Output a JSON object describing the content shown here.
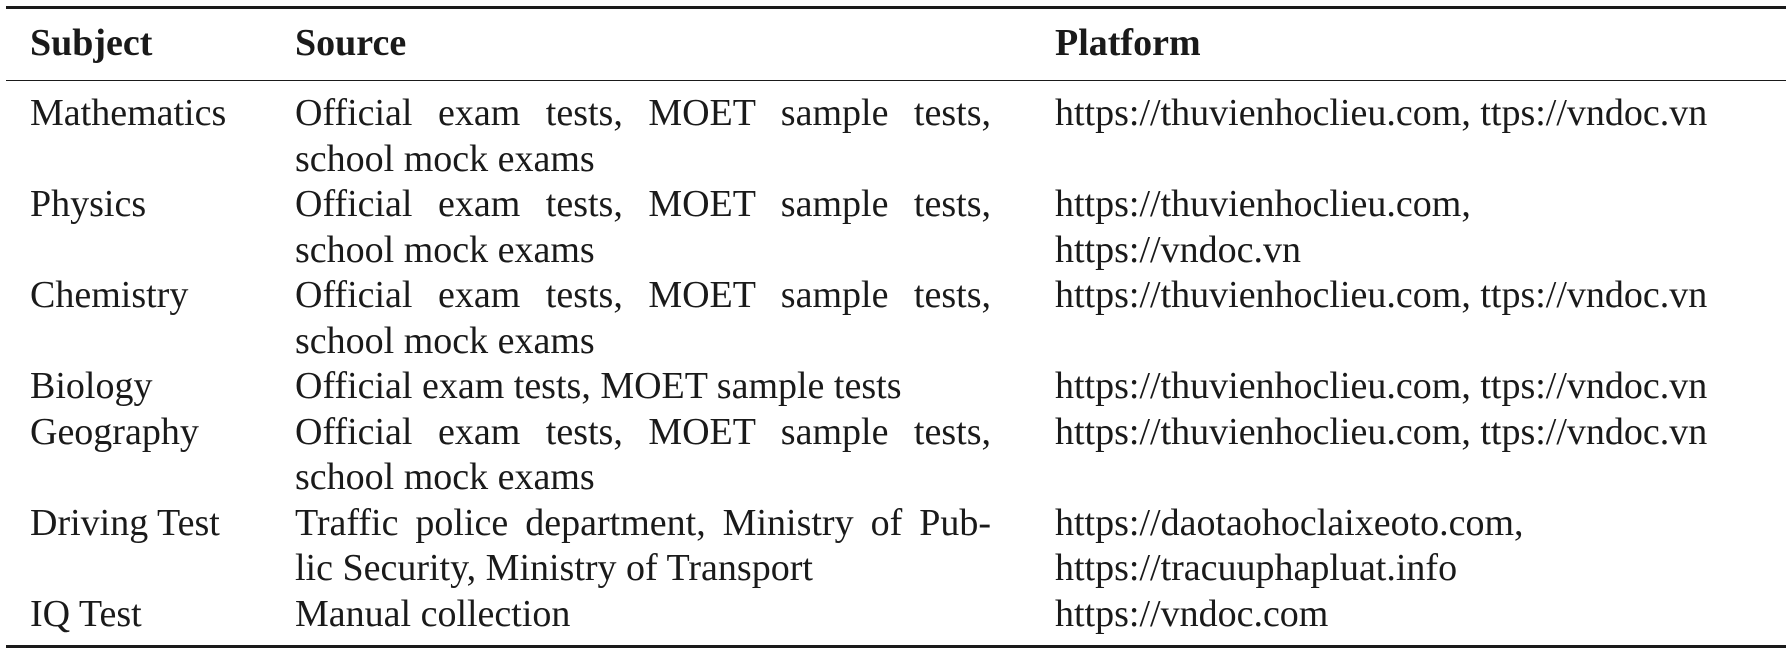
{
  "table": {
    "headers": {
      "subject": "Subject",
      "source": "Source",
      "platform": "Platform"
    },
    "rows": [
      {
        "subject": "Mathematics",
        "source_lines": [
          "Official exam tests, MOET sample tests,",
          "school mock exams"
        ],
        "platform_lines": [
          "https://thuvienhoclieu.com, ttps://vndoc.vn"
        ]
      },
      {
        "subject": "Physics",
        "source_lines": [
          "Official exam tests, MOET sample tests,",
          "school mock exams"
        ],
        "platform_lines": [
          "https://thuvienhoclieu.com,",
          "https://vndoc.vn"
        ]
      },
      {
        "subject": "Chemistry",
        "source_lines": [
          "Official exam tests, MOET sample tests,",
          "school mock exams"
        ],
        "platform_lines": [
          "https://thuvienhoclieu.com, ttps://vndoc.vn"
        ]
      },
      {
        "subject": "Biology",
        "source_lines": [
          "Official exam tests, MOET sample tests"
        ],
        "platform_lines": [
          "https://thuvienhoclieu.com, ttps://vndoc.vn"
        ]
      },
      {
        "subject": "Geography",
        "source_lines": [
          "Official exam tests, MOET sample tests,",
          "school mock exams"
        ],
        "platform_lines": [
          "https://thuvienhoclieu.com, ttps://vndoc.vn"
        ]
      },
      {
        "subject": "Driving Test",
        "source_lines": [
          "Traffic police department, Ministry of Pub-",
          "lic Security, Ministry of Transport"
        ],
        "platform_lines": [
          "https://daotaohoclaixeoto.com,",
          "https://tracuuphapluat.info"
        ]
      },
      {
        "subject": "IQ Test",
        "source_lines": [
          "Manual collection"
        ],
        "platform_lines": [
          "https://vndoc.com"
        ]
      }
    ]
  }
}
